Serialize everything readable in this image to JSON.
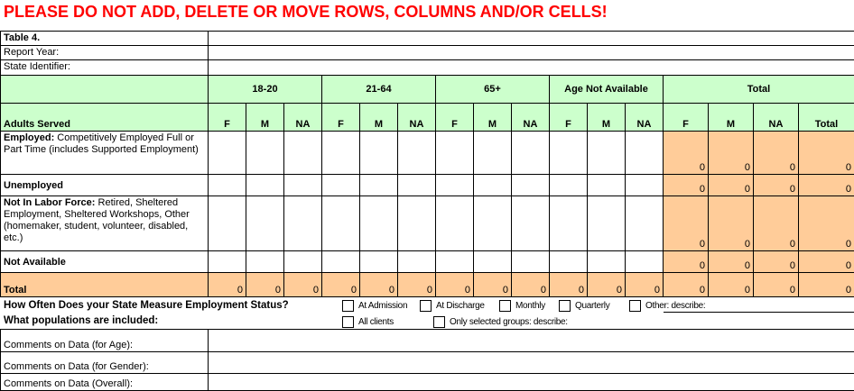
{
  "warning": "PLEASE DO NOT ADD, DELETE OR MOVE ROWS, COLUMNS AND/OR CELLS!",
  "header": {
    "table_label": "Table 4.",
    "report_year": "Report Year:",
    "state_identifier": "State Identifier:",
    "row_header": "Adults Served"
  },
  "groups": [
    "18-20",
    "21-64",
    "65+",
    "Age Not Available",
    "Total"
  ],
  "subcols": [
    "F",
    "M",
    "NA",
    "F",
    "M",
    "NA",
    "F",
    "M",
    "NA",
    "F",
    "M",
    "NA",
    "F",
    "M",
    "NA",
    "Total"
  ],
  "rows": [
    {
      "bold": "Employed:",
      "text": " Competitively Employed Full or Part Time (includes Supported Employment)",
      "totals": [
        "0",
        "0",
        "0",
        "0"
      ]
    },
    {
      "bold": "Unemployed",
      "text": "",
      "totals": [
        "0",
        "0",
        "0",
        "0"
      ]
    },
    {
      "bold": "Not In Labor Force:",
      "text": "  Retired, Sheltered Employment, Sheltered Workshops, Other (homemaker, student, volunteer, disabled, etc.)",
      "totals": [
        "0",
        "0",
        "0",
        "0"
      ]
    },
    {
      "bold": "Not Available",
      "text": "",
      "totals": [
        "0",
        "0",
        "0",
        "0"
      ]
    }
  ],
  "total_row": {
    "label": "Total",
    "values": [
      "0",
      "0",
      "0",
      "0",
      "0",
      "0",
      "0",
      "0",
      "0",
      "0",
      "0",
      "0",
      "0",
      "0",
      "0",
      "0"
    ]
  },
  "questions": {
    "employment_q": "How Often Does your State Measure Employment Status?",
    "employment_opts": [
      "At Admission",
      "At Discharge",
      "Monthly",
      "Quarterly",
      "Other: describe:"
    ],
    "pop_q": "What populations are included:",
    "pop_opts": [
      "All clients",
      "Only selected groups: describe:"
    ]
  },
  "comments": [
    "Comments on Data (for Age):",
    "Comments on Data (for Gender):",
    "Comments on Data (Overall):"
  ],
  "colors": {
    "warning": "#ff0000",
    "header_bg": "#ccffcc",
    "calc_bg": "#ffcc99"
  }
}
